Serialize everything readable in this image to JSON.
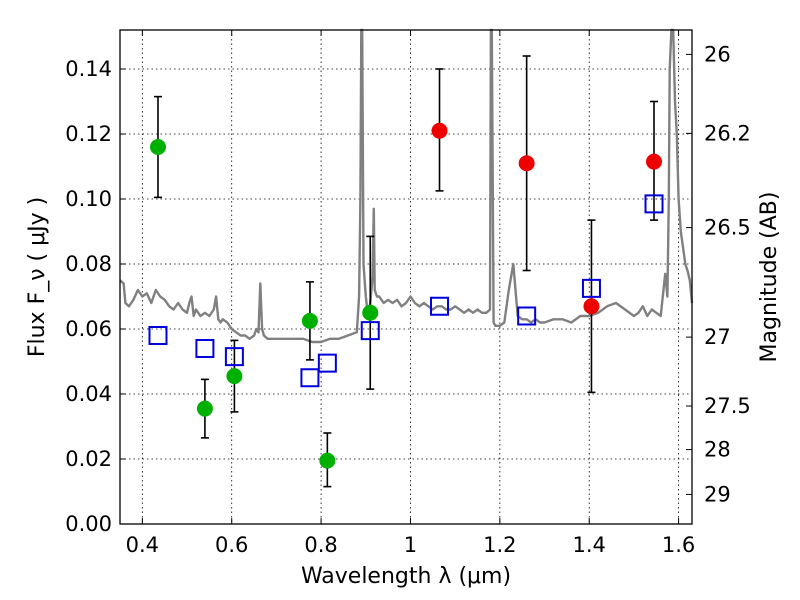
{
  "chart_data": {
    "type": "scatter",
    "xlabel": "Wavelength  λ (μm)",
    "ylabel": "Flux  F_ν  ( μJy )",
    "ylabel_right": "Magnitude (AB)",
    "xlim": [
      0.35,
      1.63
    ],
    "ylim": [
      0.0,
      0.152
    ],
    "grid": true,
    "x_ticks": [
      {
        "value": 0.4,
        "label": "0.4"
      },
      {
        "value": 0.6,
        "label": "0.6"
      },
      {
        "value": 0.8,
        "label": "0.8"
      },
      {
        "value": 1.0,
        "label": "1"
      },
      {
        "value": 1.2,
        "label": "1.2"
      },
      {
        "value": 1.4,
        "label": "1.4"
      },
      {
        "value": 1.6,
        "label": "1.6"
      }
    ],
    "y_ticks": [
      {
        "value": 0.0,
        "label": "0.00"
      },
      {
        "value": 0.02,
        "label": "0.02"
      },
      {
        "value": 0.04,
        "label": "0.04"
      },
      {
        "value": 0.06,
        "label": "0.06"
      },
      {
        "value": 0.08,
        "label": "0.08"
      },
      {
        "value": 0.1,
        "label": "0.10"
      },
      {
        "value": 0.12,
        "label": "0.12"
      },
      {
        "value": 0.14,
        "label": "0.14"
      }
    ],
    "right_ticks": [
      {
        "label": "26",
        "flux": 0.1445
      },
      {
        "label": "26.2",
        "flux": 0.1202
      },
      {
        "label": "26.5",
        "flux": 0.0912
      },
      {
        "label": "27",
        "flux": 0.0575
      },
      {
        "label": "27.5",
        "flux": 0.0363
      },
      {
        "label": "28",
        "flux": 0.0229
      },
      {
        "label": "29",
        "flux": 0.0091
      }
    ],
    "series": [
      {
        "name": "green detections",
        "color": "#00b000",
        "marker": "circle",
        "points": [
          {
            "x": 0.435,
            "y": 0.116,
            "err_low": 0.1005,
            "err_high": 0.1315
          },
          {
            "x": 0.54,
            "y": 0.0355,
            "err_low": 0.0265,
            "err_high": 0.0445
          },
          {
            "x": 0.606,
            "y": 0.0455,
            "err_low": 0.0345,
            "err_high": 0.0565
          },
          {
            "x": 0.775,
            "y": 0.0625,
            "err_low": 0.0505,
            "err_high": 0.0745
          },
          {
            "x": 0.814,
            "y": 0.0195,
            "err_low": 0.0115,
            "err_high": 0.028
          },
          {
            "x": 0.91,
            "y": 0.065,
            "err_low": 0.0415,
            "err_high": 0.0885
          }
        ]
      },
      {
        "name": "red detections",
        "color": "#ee0000",
        "marker": "circle",
        "points": [
          {
            "x": 1.065,
            "y": 0.121,
            "err_low": 0.1025,
            "err_high": 0.14
          },
          {
            "x": 1.26,
            "y": 0.111,
            "err_low": 0.078,
            "err_high": 0.144
          },
          {
            "x": 1.405,
            "y": 0.067,
            "err_low": 0.0405,
            "err_high": 0.0935
          },
          {
            "x": 1.545,
            "y": 0.1115,
            "err_low": 0.0935,
            "err_high": 0.13
          }
        ]
      },
      {
        "name": "model photometry",
        "color": "#0000dd",
        "marker": "open-square",
        "points": [
          {
            "x": 0.435,
            "y": 0.058
          },
          {
            "x": 0.54,
            "y": 0.054
          },
          {
            "x": 0.606,
            "y": 0.0515
          },
          {
            "x": 0.775,
            "y": 0.045
          },
          {
            "x": 0.814,
            "y": 0.0495
          },
          {
            "x": 0.91,
            "y": 0.0595
          },
          {
            "x": 1.065,
            "y": 0.067
          },
          {
            "x": 1.26,
            "y": 0.064
          },
          {
            "x": 1.405,
            "y": 0.0725
          },
          {
            "x": 1.545,
            "y": 0.0985
          }
        ]
      }
    ],
    "spectrum": {
      "name": "model spectrum",
      "color": "#808080",
      "x": [
        0.35,
        0.358,
        0.362,
        0.37,
        0.38,
        0.39,
        0.4,
        0.41,
        0.42,
        0.43,
        0.44,
        0.45,
        0.46,
        0.47,
        0.48,
        0.49,
        0.5,
        0.505,
        0.51,
        0.515,
        0.52,
        0.53,
        0.54,
        0.55,
        0.56,
        0.565,
        0.57,
        0.575,
        0.58,
        0.59,
        0.6,
        0.61,
        0.62,
        0.63,
        0.64,
        0.65,
        0.655,
        0.66,
        0.664,
        0.668,
        0.672,
        0.68,
        0.7,
        0.72,
        0.74,
        0.76,
        0.78,
        0.8,
        0.82,
        0.84,
        0.86,
        0.88,
        0.885,
        0.888,
        0.89,
        0.892,
        0.895,
        0.9,
        0.905,
        0.91,
        0.915,
        0.918,
        0.92,
        0.925,
        0.93,
        0.94,
        0.95,
        0.96,
        0.97,
        0.98,
        0.99,
        1.0,
        1.01,
        1.02,
        1.03,
        1.04,
        1.05,
        1.06,
        1.07,
        1.08,
        1.09,
        1.1,
        1.11,
        1.12,
        1.13,
        1.14,
        1.15,
        1.16,
        1.17,
        1.178,
        1.18,
        1.182,
        1.186,
        1.19,
        1.2,
        1.21,
        1.22,
        1.23,
        1.24,
        1.25,
        1.26,
        1.27,
        1.28,
        1.29,
        1.3,
        1.32,
        1.34,
        1.36,
        1.38,
        1.4,
        1.42,
        1.44,
        1.46,
        1.48,
        1.5,
        1.51,
        1.52,
        1.53,
        1.54,
        1.55,
        1.56,
        1.57,
        1.575,
        1.578,
        1.58,
        1.584,
        1.588,
        1.592,
        1.596,
        1.6,
        1.605,
        1.61,
        1.615,
        1.62,
        1.625,
        1.63
      ],
      "y": [
        0.075,
        0.074,
        0.068,
        0.067,
        0.069,
        0.072,
        0.07,
        0.071,
        0.068,
        0.072,
        0.07,
        0.069,
        0.067,
        0.066,
        0.068,
        0.066,
        0.065,
        0.068,
        0.07,
        0.064,
        0.066,
        0.064,
        0.065,
        0.064,
        0.066,
        0.07,
        0.063,
        0.062,
        0.063,
        0.062,
        0.06,
        0.059,
        0.058,
        0.058,
        0.057,
        0.058,
        0.06,
        0.059,
        0.074,
        0.06,
        0.058,
        0.057,
        0.057,
        0.057,
        0.057,
        0.057,
        0.056,
        0.056,
        0.057,
        0.057,
        0.058,
        0.059,
        0.07,
        0.1,
        0.16,
        0.16,
        0.08,
        0.07,
        0.064,
        0.068,
        0.076,
        0.097,
        0.072,
        0.07,
        0.07,
        0.068,
        0.069,
        0.068,
        0.069,
        0.067,
        0.068,
        0.07,
        0.068,
        0.067,
        0.068,
        0.067,
        0.066,
        0.067,
        0.067,
        0.066,
        0.066,
        0.067,
        0.066,
        0.065,
        0.066,
        0.065,
        0.066,
        0.065,
        0.065,
        0.066,
        0.16,
        0.16,
        0.062,
        0.061,
        0.061,
        0.062,
        0.072,
        0.08,
        0.064,
        0.063,
        0.063,
        0.062,
        0.063,
        0.062,
        0.062,
        0.063,
        0.063,
        0.062,
        0.064,
        0.064,
        0.065,
        0.067,
        0.068,
        0.066,
        0.064,
        0.065,
        0.067,
        0.064,
        0.066,
        0.065,
        0.064,
        0.077,
        0.07,
        0.1,
        0.14,
        0.16,
        0.16,
        0.13,
        0.12,
        0.1,
        0.09,
        0.085,
        0.08,
        0.078,
        0.075,
        0.068
      ]
    }
  }
}
